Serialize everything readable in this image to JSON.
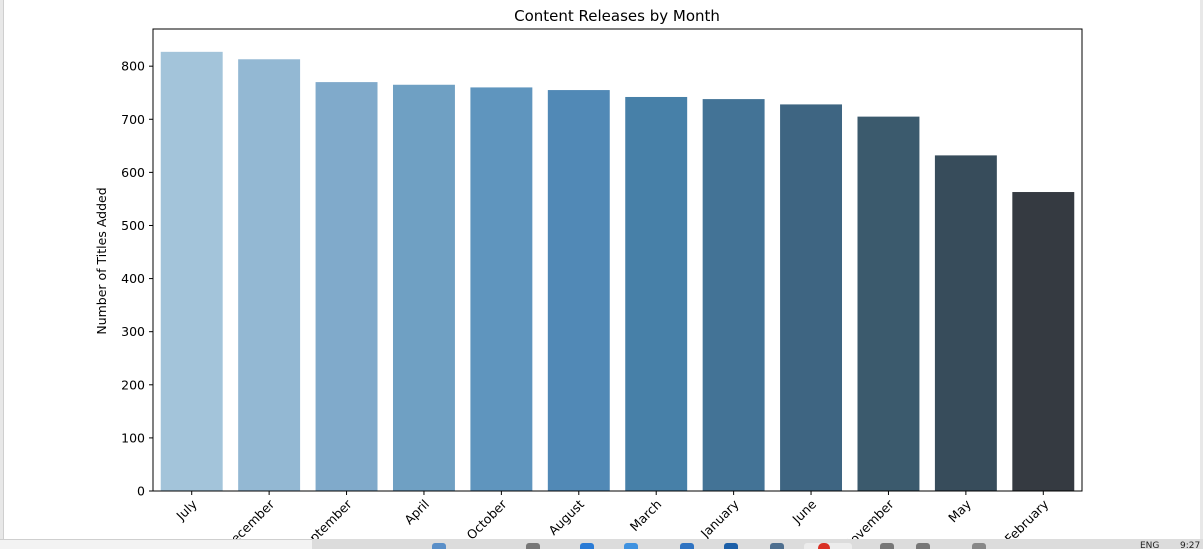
{
  "chart_data": {
    "type": "bar",
    "title": "Content Releases by Month",
    "xlabel": "",
    "ylabel": "Number of Titles Added",
    "categories": [
      "July",
      "December",
      "September",
      "April",
      "October",
      "August",
      "March",
      "January",
      "June",
      "November",
      "May",
      "February"
    ],
    "values": [
      827,
      813,
      770,
      765,
      760,
      755,
      742,
      738,
      728,
      705,
      632,
      563
    ],
    "ylim": [
      0,
      870
    ],
    "yticks": [
      0,
      100,
      200,
      300,
      400,
      500,
      600,
      700,
      800
    ],
    "colors": [
      "#a3c4da",
      "#93b8d3",
      "#80aacb",
      "#6fa0c3",
      "#5f95be",
      "#5189b6",
      "#4780a8",
      "#437396",
      "#3e6582",
      "#3b5a6d",
      "#374c5b",
      "#353a41"
    ],
    "grid": false,
    "legend": "none"
  },
  "taskbar": {
    "lang": "ENG",
    "time": "9:27"
  }
}
